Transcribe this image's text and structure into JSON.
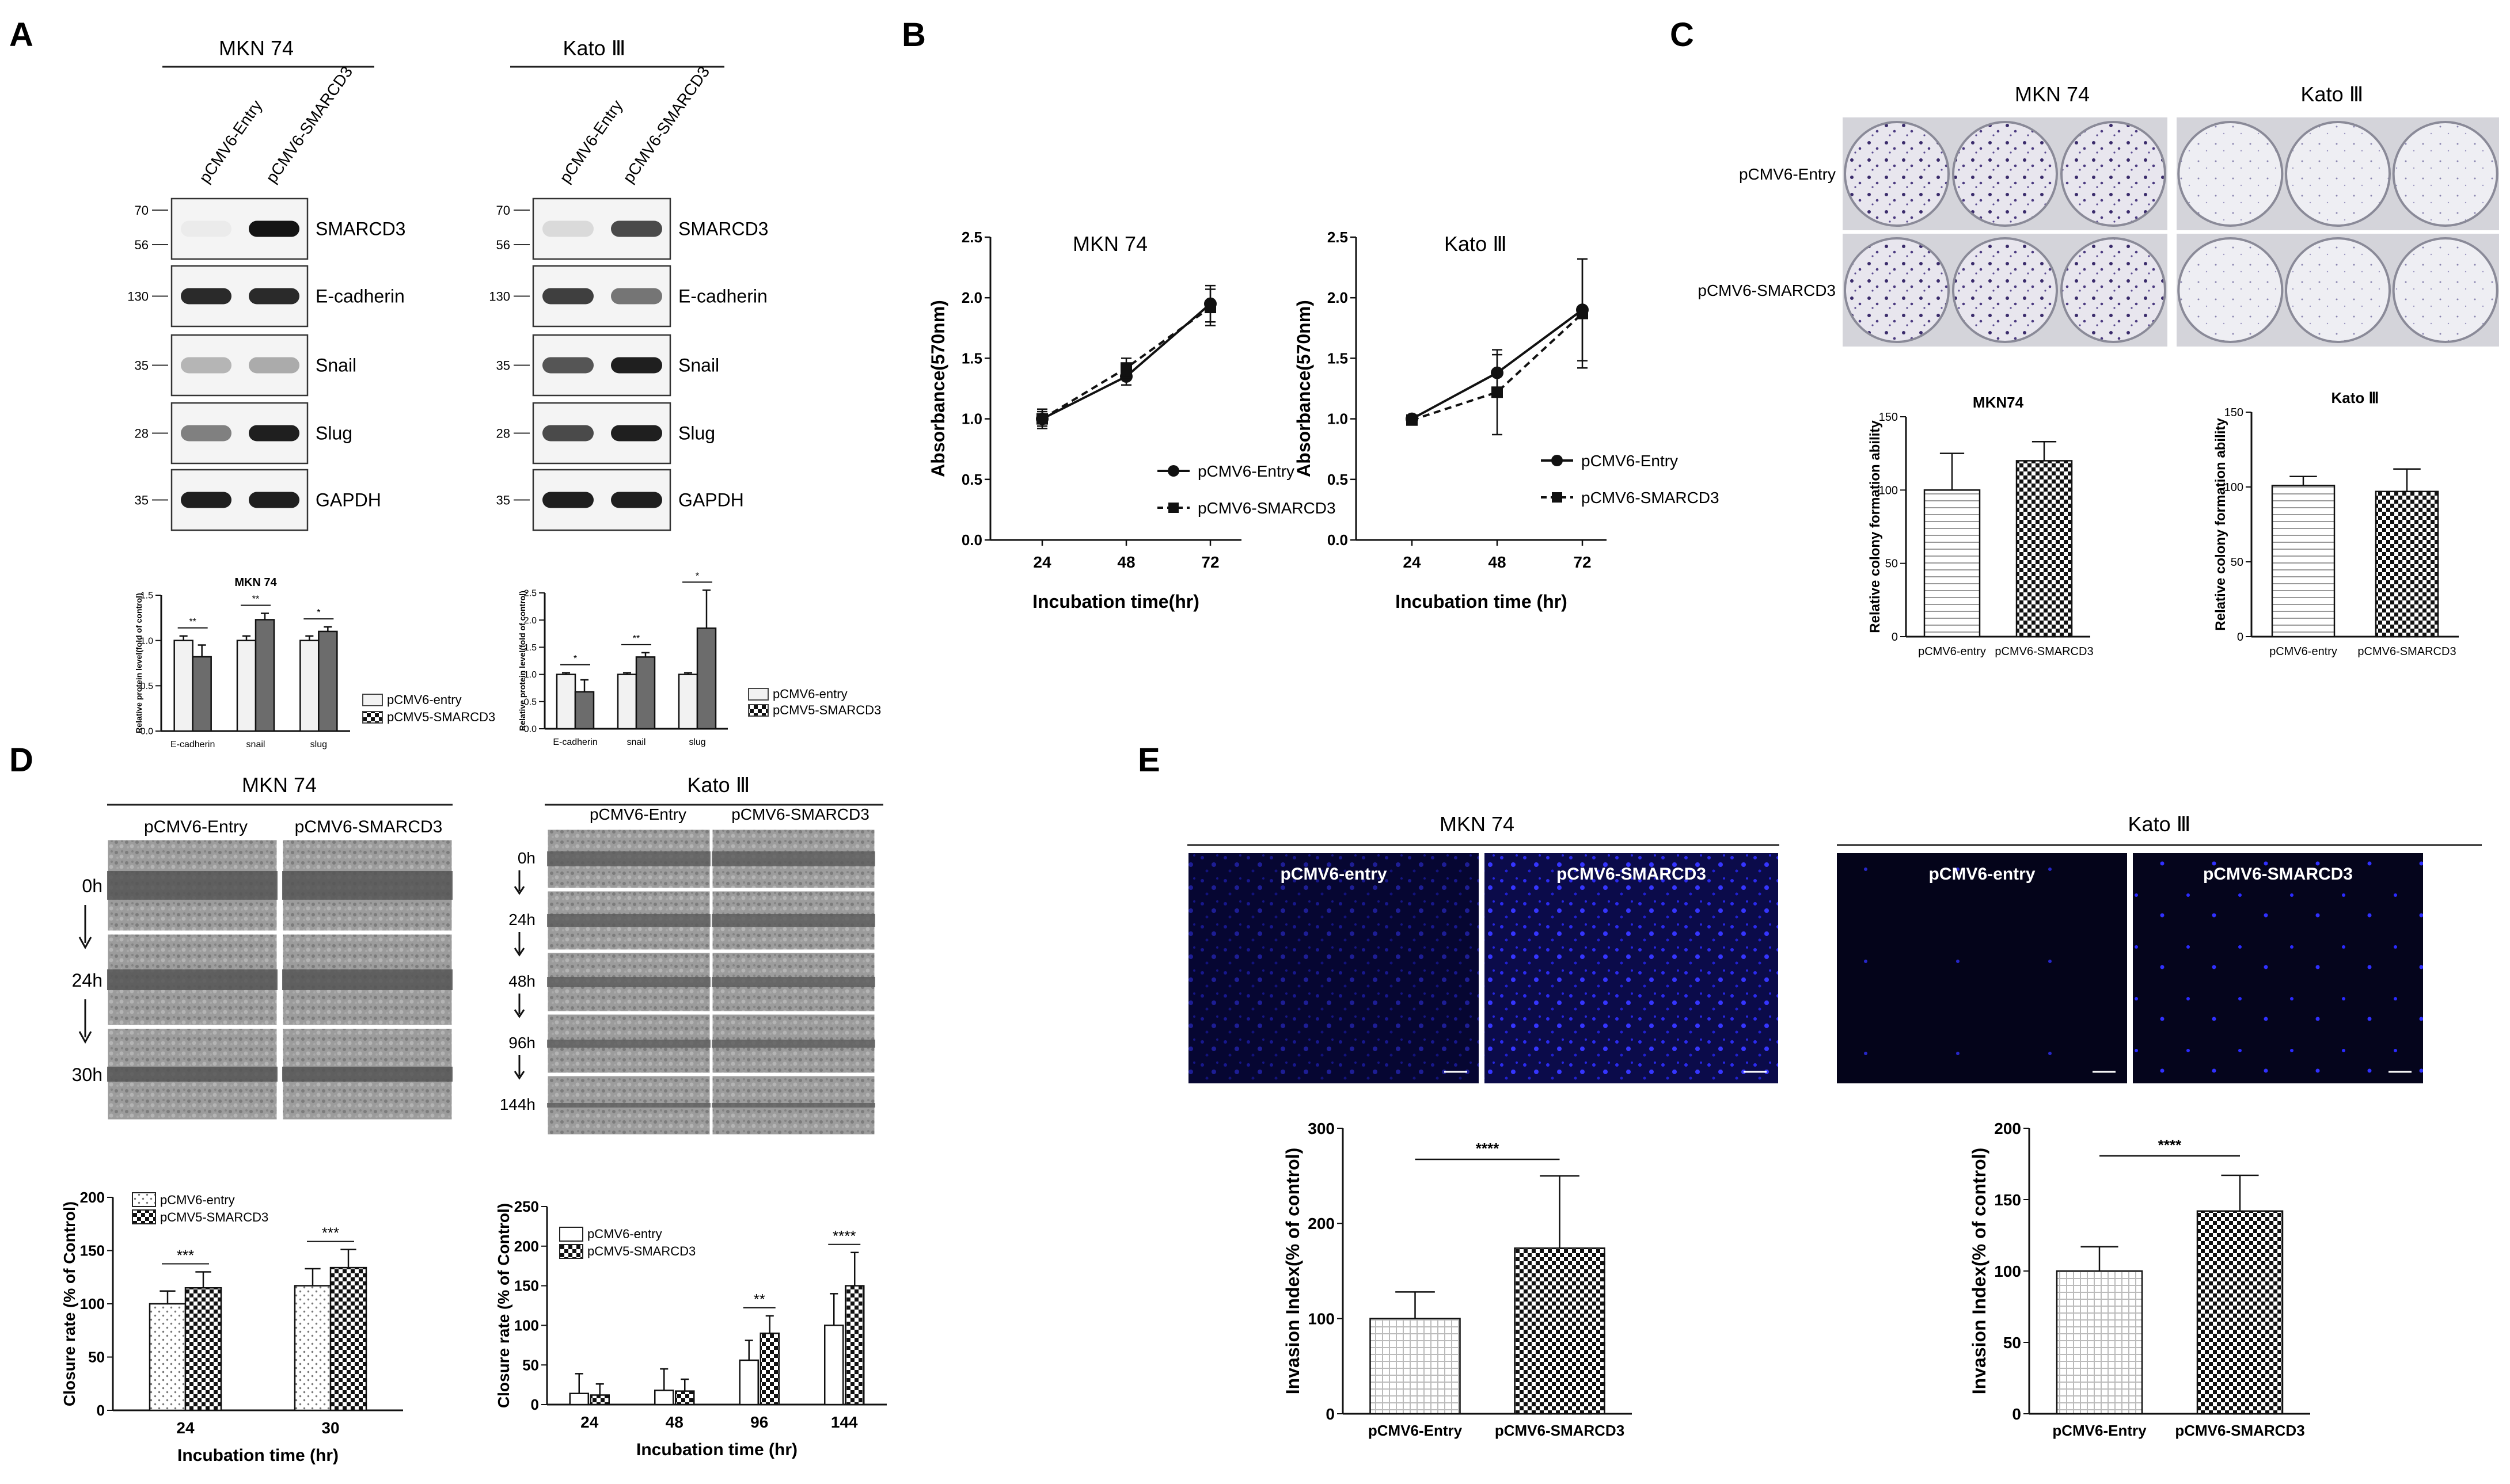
{
  "panels": {
    "A": {
      "label": "A",
      "groups": [
        {
          "cell": "MKN 74",
          "lanes": [
            "pCMV6-Entry",
            "pCMV6-SMARCD3"
          ]
        },
        {
          "cell": "Kato Ⅲ",
          "lanes": [
            "pCMV6-Entry",
            "pCMV6-SMARCD3"
          ]
        }
      ],
      "proteins": [
        "SMARCD3",
        "E-cadherin",
        "Snail",
        "Slug",
        "GAPDH"
      ],
      "markers": [
        [
          "70",
          "56"
        ],
        [
          "130"
        ],
        [
          "35"
        ],
        [
          "28"
        ],
        [
          "35"
        ]
      ],
      "quant_title": "MKN 74",
      "quant_ylabel": "Relative protein level(fold of control)",
      "legend": [
        "pCMV6-entry",
        "pCMV5-SMARCD3"
      ]
    },
    "B": {
      "label": "B"
    },
    "C": {
      "label": "C",
      "cells": [
        "MKN 74",
        "Kato Ⅲ"
      ],
      "rows": [
        "pCMV6-Entry",
        "pCMV6-SMARCD3"
      ]
    },
    "D": {
      "label": "D",
      "mkn_title": "MKN 74",
      "kato_title": "Kato Ⅲ",
      "cols": [
        "pCMV6-Entry",
        "pCMV6-SMARCD3"
      ],
      "mkn_times": [
        "0h",
        "24h",
        "30h"
      ],
      "kato_times": [
        "0h",
        "24h",
        "48h",
        "96h",
        "144h"
      ],
      "legend": [
        "pCMV6-entry",
        "pCMV5-SMARCD3"
      ]
    },
    "E": {
      "label": "E",
      "groups": [
        {
          "cell": "MKN 74",
          "cols": [
            "pCMV6-entry",
            "pCMV6-SMARCD3"
          ]
        },
        {
          "cell": "Kato Ⅲ",
          "cols": [
            "pCMV6-entry",
            "pCMV6-SMARCD3"
          ]
        }
      ]
    }
  },
  "chart_data": [
    {
      "id": "A-MKN74",
      "type": "bar",
      "title": "MKN 74",
      "categories": [
        "E-cadherin",
        "snail",
        "slug"
      ],
      "series": [
        {
          "name": "pCMV6-entry",
          "values": [
            1.0,
            1.0,
            1.0
          ],
          "err": [
            0.05,
            0.05,
            0.05
          ]
        },
        {
          "name": "pCMV5-SMARCD3",
          "values": [
            0.82,
            1.23,
            1.1
          ],
          "err": [
            0.13,
            0.07,
            0.05
          ]
        }
      ],
      "yticks": [
        "0.0",
        "0.5",
        "1.0",
        "1.5"
      ],
      "ylim": [
        0,
        1.5
      ],
      "sig": [
        "**",
        "**",
        "*"
      ],
      "ylabel": "Relative protein level(fold of control)"
    },
    {
      "id": "A-Kato",
      "type": "bar",
      "title": "",
      "categories": [
        "E-cadherin",
        "snail",
        "slug"
      ],
      "series": [
        {
          "name": "pCMV6-entry",
          "values": [
            1.0,
            1.0,
            1.0
          ],
          "err": [
            0.03,
            0.03,
            0.03
          ]
        },
        {
          "name": "pCMV5-SMARCD3",
          "values": [
            0.68,
            1.32,
            1.85
          ],
          "err": [
            0.22,
            0.08,
            0.7
          ]
        }
      ],
      "yticks": [
        "0.0",
        "0.5",
        "1.0",
        "1.5",
        "2.0",
        "2.5"
      ],
      "ylim": [
        0,
        2.5
      ],
      "sig": [
        "*",
        "**",
        "*"
      ],
      "ylabel": "Relative protein level(fold of control)"
    },
    {
      "id": "B-MKN74",
      "type": "line",
      "title": "MKN 74",
      "x": [
        "24",
        "48",
        "72"
      ],
      "series": [
        {
          "name": "pCMV6-Entry",
          "values": [
            1.0,
            1.35,
            1.95
          ],
          "err": [
            0.06,
            0.07,
            0.15
          ]
        },
        {
          "name": "pCMV6-SMARCD3",
          "values": [
            1.0,
            1.42,
            1.92
          ],
          "err": [
            0.08,
            0.08,
            0.15
          ]
        }
      ],
      "xlabel": "Incubation time(hr)",
      "ylabel": "Absorbance(570nm)",
      "ylim": [
        0,
        2.5
      ],
      "yticks": [
        "0.0",
        "0.5",
        "1.0",
        "1.5",
        "2.0",
        "2.5"
      ]
    },
    {
      "id": "B-Kato",
      "type": "line",
      "title": "Kato Ⅲ",
      "x": [
        "24",
        "48",
        "72"
      ],
      "series": [
        {
          "name": "pCMV6-Entry",
          "values": [
            1.0,
            1.38,
            1.9
          ],
          "err": [
            0.03,
            0.15,
            0.42
          ]
        },
        {
          "name": "pCMV6-SMARCD3",
          "values": [
            0.99,
            1.22,
            1.87
          ],
          "err": [
            0.03,
            0.35,
            0.45
          ]
        }
      ],
      "xlabel": "Incubation time (hr)",
      "ylabel": "Absorbance(570nm)",
      "ylim": [
        0,
        2.5
      ],
      "yticks": [
        "0.0",
        "0.5",
        "1.0",
        "1.5",
        "2.0",
        "2.5"
      ]
    },
    {
      "id": "C-MKN74",
      "type": "bar",
      "title": "MKN74",
      "categories": [
        "pCMV6-entry",
        "pCMV6-SMARCD3"
      ],
      "values": [
        100,
        120
      ],
      "err": [
        25,
        13
      ],
      "ylabel": "Relative colony formation ability",
      "ylim": [
        0,
        150
      ],
      "yticks": [
        "0",
        "50",
        "100",
        "150"
      ]
    },
    {
      "id": "C-Kato",
      "type": "bar",
      "title": "Kato Ⅲ",
      "categories": [
        "pCMV6-entry",
        "pCMV6-SMARCD3"
      ],
      "values": [
        101,
        97
      ],
      "err": [
        6,
        15
      ],
      "ylabel": "Relative colony formation ability",
      "ylim": [
        0,
        150
      ],
      "yticks": [
        "0",
        "50",
        "100",
        "150"
      ]
    },
    {
      "id": "D-MKN74",
      "type": "bar",
      "categories": [
        "24",
        "30"
      ],
      "series": [
        {
          "name": "pCMV6-entry",
          "values": [
            100,
            117
          ],
          "err": [
            12,
            16
          ]
        },
        {
          "name": "pCMV5-SMARCD3",
          "values": [
            115,
            134
          ],
          "err": [
            15,
            17
          ]
        }
      ],
      "xlabel": "Incubation time (hr)",
      "ylabel": "Closure rate (% of Control)",
      "ylim": [
        0,
        200
      ],
      "yticks": [
        "0",
        "50",
        "100",
        "150",
        "200"
      ],
      "sig": [
        "***",
        "***"
      ]
    },
    {
      "id": "D-Kato",
      "type": "bar",
      "categories": [
        "24",
        "48",
        "96",
        "144"
      ],
      "series": [
        {
          "name": "pCMV6-entry",
          "values": [
            14,
            18,
            56,
            100
          ],
          "err": [
            25,
            27,
            25,
            40
          ]
        },
        {
          "name": "pCMV5-SMARCD3",
          "values": [
            12,
            17,
            90,
            150
          ],
          "err": [
            14,
            15,
            22,
            42
          ]
        }
      ],
      "xlabel": "Incubation time (hr)",
      "ylabel": "Closure rate (% of Control)",
      "ylim": [
        0,
        250
      ],
      "yticks": [
        "0",
        "50",
        "100",
        "150",
        "200",
        "250"
      ],
      "sig": [
        "",
        "",
        "**",
        "****"
      ]
    },
    {
      "id": "E-MKN74",
      "type": "bar",
      "categories": [
        "pCMV6-Entry",
        "pCMV6-SMARCD3"
      ],
      "values": [
        100,
        174
      ],
      "err": [
        28,
        76
      ],
      "ylabel": "Invasion Index(% of control)",
      "ylim": [
        0,
        300
      ],
      "yticks": [
        "0",
        "100",
        "200",
        "300"
      ],
      "sig": "****"
    },
    {
      "id": "E-Kato",
      "type": "bar",
      "categories": [
        "pCMV6-Entry",
        "pCMV6-SMARCD3"
      ],
      "values": [
        100,
        142
      ],
      "err": [
        17,
        25
      ],
      "ylabel": "Invasion Index(% of control)",
      "ylim": [
        0,
        200
      ],
      "yticks": [
        "0",
        "50",
        "100",
        "150",
        "200"
      ],
      "sig": "****"
    }
  ]
}
